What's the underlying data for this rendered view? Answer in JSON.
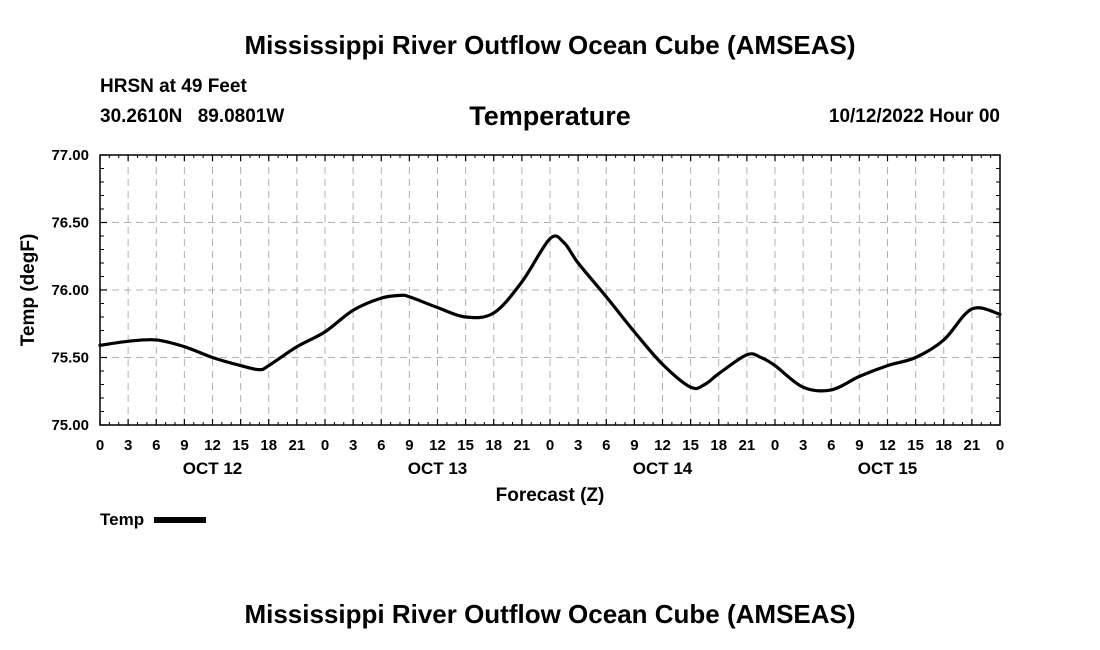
{
  "header": {
    "title": "Mississippi River Outflow Ocean Cube (AMSEAS)",
    "station": "HRSN at 49 Feet",
    "lat": "30.2610N",
    "lon": "89.0801W",
    "subtitle": "Temperature",
    "forecast_time": "10/12/2022 Hour 00"
  },
  "footer": {
    "title": "Mississippi River Outflow Ocean Cube (AMSEAS)"
  },
  "legend": {
    "label": "Temp",
    "color": "#000000"
  },
  "chart_data": {
    "type": "line",
    "title": "Temperature",
    "xlabel": "Forecast (Z)",
    "ylabel": "Temp (degF)",
    "xlim": [
      0,
      96
    ],
    "ylim": [
      75.0,
      77.0
    ],
    "y_ticks": [
      75.0,
      75.5,
      76.0,
      76.5,
      77.0
    ],
    "y_tick_labels": [
      "75.00",
      "75.50",
      "76.00",
      "76.50",
      "77.00"
    ],
    "x_ticks": [
      0,
      3,
      6,
      9,
      12,
      15,
      18,
      21,
      24,
      27,
      30,
      33,
      36,
      39,
      42,
      45,
      48,
      51,
      54,
      57,
      60,
      63,
      66,
      69,
      72,
      75,
      78,
      81,
      84,
      87,
      90,
      93,
      96
    ],
    "x_tick_labels": [
      "0",
      "3",
      "6",
      "9",
      "12",
      "15",
      "18",
      "21",
      "0",
      "3",
      "6",
      "9",
      "12",
      "15",
      "18",
      "21",
      "0",
      "3",
      "6",
      "9",
      "12",
      "15",
      "18",
      "21",
      "0",
      "3",
      "6",
      "9",
      "12",
      "15",
      "18",
      "21",
      "0"
    ],
    "day_labels": [
      {
        "label": "OCT 12",
        "at": 12
      },
      {
        "label": "OCT 13",
        "at": 36
      },
      {
        "label": "OCT 14",
        "at": 60
      },
      {
        "label": "OCT 15",
        "at": 84
      }
    ],
    "grid": true,
    "series": [
      {
        "name": "Temp",
        "x": [
          0,
          3,
          6,
          9,
          12,
          15,
          17,
          18,
          21,
          24,
          27,
          30,
          32,
          33,
          36,
          39,
          42,
          45,
          48,
          49.5,
          51,
          54,
          57,
          60,
          63,
          64.5,
          66,
          69,
          70.5,
          72,
          75,
          78,
          81,
          84,
          87,
          90,
          93,
          96
        ],
        "y": [
          75.59,
          75.62,
          75.63,
          75.58,
          75.5,
          75.44,
          75.41,
          75.44,
          75.58,
          75.69,
          75.85,
          75.94,
          75.96,
          75.95,
          75.87,
          75.8,
          75.83,
          76.06,
          76.38,
          76.35,
          76.2,
          75.95,
          75.69,
          75.45,
          75.28,
          75.3,
          75.38,
          75.52,
          75.5,
          75.44,
          75.28,
          75.26,
          75.36,
          75.44,
          75.5,
          75.63,
          75.86,
          75.82
        ]
      }
    ]
  }
}
